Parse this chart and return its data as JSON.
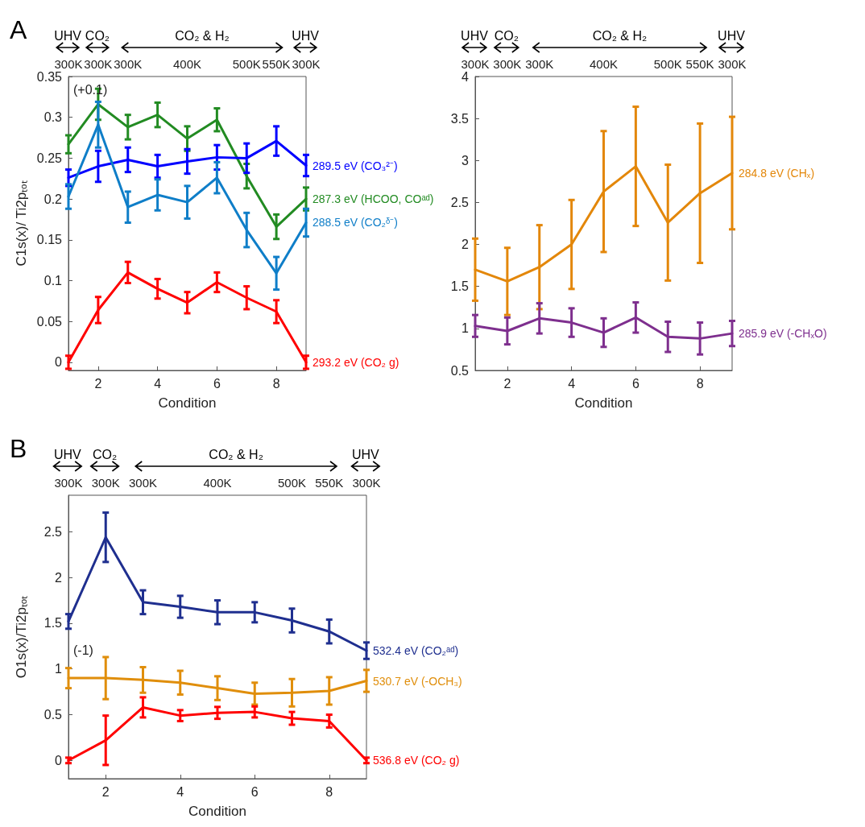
{
  "chart_data": [
    {
      "type": "line",
      "xlabel": "Condition",
      "ylabel": "C1s(x)/ Ti2pₜₒₜ",
      "x": [
        1,
        2,
        3,
        4,
        5,
        6,
        7,
        8,
        9
      ],
      "xlim": [
        1,
        9
      ],
      "xticks": [
        2,
        4,
        6,
        8
      ],
      "ylim": [
        -0.01,
        0.35
      ],
      "yticks": [
        0,
        0.05,
        0.1,
        0.15,
        0.2,
        0.25,
        0.3,
        0.35
      ],
      "grid": false,
      "legend": false,
      "marker": "none",
      "line_style": "solid",
      "annotations": [
        "A",
        "UHV",
        "CO₂",
        "CO₂ & H₂",
        "UHV",
        "300K",
        "300K",
        "300K",
        "400K",
        "500K",
        "550K",
        "300K",
        "(+0.1)"
      ],
      "series": [
        {
          "name": "287.3 eV (HCOO, COᵃᵈ)",
          "color": "#228b22",
          "values": [
            0.267,
            0.316,
            0.288,
            0.303,
            0.274,
            0.297,
            0.228,
            0.166,
            0.2
          ],
          "errors": [
            0.011,
            0.019,
            0.015,
            0.015,
            0.015,
            0.014,
            0.015,
            0.015,
            0.014
          ]
        },
        {
          "name": "289.5 eV (CO₃²⁻)",
          "color": "#0000ff",
          "values": [
            0.226,
            0.24,
            0.248,
            0.24,
            0.246,
            0.251,
            0.25,
            0.271,
            0.241
          ],
          "errors": [
            0.01,
            0.019,
            0.015,
            0.014,
            0.015,
            0.015,
            0.018,
            0.018,
            0.013
          ]
        },
        {
          "name": "288.5 eV (CO₂ᵟ⁻)",
          "color": "#0f7ec8",
          "values": [
            0.203,
            0.291,
            0.19,
            0.205,
            0.196,
            0.226,
            0.162,
            0.109,
            0.171
          ],
          "errors": [
            0.015,
            0.028,
            0.019,
            0.019,
            0.02,
            0.019,
            0.021,
            0.02,
            0.017
          ]
        },
        {
          "name": "293.2 eV (CO₂ g)",
          "color": "#ff0000",
          "values": [
            0,
            0.064,
            0.11,
            0.09,
            0.073,
            0.098,
            0.079,
            0.062,
            0
          ],
          "errors": [
            0.008,
            0.016,
            0.013,
            0.012,
            0.013,
            0.012,
            0.014,
            0.014,
            0.008
          ]
        }
      ]
    },
    {
      "type": "line",
      "xlabel": "Condition",
      "x": [
        1,
        2,
        3,
        4,
        5,
        6,
        7,
        8,
        9
      ],
      "xlim": [
        1,
        9
      ],
      "xticks": [
        2,
        4,
        6,
        8
      ],
      "ylim": [
        0.5,
        4
      ],
      "yticks": [
        0.5,
        1,
        1.5,
        2,
        2.5,
        3,
        3.5,
        4
      ],
      "grid": false,
      "legend": false,
      "marker": "none",
      "line_style": "solid",
      "annotations": [
        "UHV",
        "CO₂",
        "CO₂ & H₂",
        "UHV",
        "300K",
        "300K",
        "300K",
        "400K",
        "500K",
        "550K",
        "300K"
      ],
      "series": [
        {
          "name": "284.8 eV (CHₓ)",
          "color": "#e3870a",
          "values": [
            1.7,
            1.56,
            1.73,
            2.0,
            2.63,
            2.93,
            2.26,
            2.61,
            2.85
          ],
          "errors": [
            0.37,
            0.4,
            0.5,
            0.53,
            0.72,
            0.71,
            0.69,
            0.83,
            0.67
          ]
        },
        {
          "name": "285.9 eV (-CHₓO)",
          "color": "#7e2f8e",
          "values": [
            1.03,
            0.97,
            1.12,
            1.07,
            0.95,
            1.13,
            0.9,
            0.88,
            0.94
          ],
          "errors": [
            0.13,
            0.16,
            0.18,
            0.17,
            0.17,
            0.18,
            0.18,
            0.19,
            0.15
          ]
        }
      ]
    },
    {
      "type": "line",
      "xlabel": "Condition",
      "ylabel": "O1s(x)/Ti2pₜₒₜ",
      "x": [
        1,
        2,
        3,
        4,
        5,
        6,
        7,
        8,
        9
      ],
      "xlim": [
        1,
        9
      ],
      "xticks": [
        2,
        4,
        6,
        8
      ],
      "ylim": [
        -0.2,
        2.9
      ],
      "yticks": [
        0,
        0.5,
        1,
        1.5,
        2,
        2.5
      ],
      "grid": false,
      "legend": false,
      "marker": "none",
      "line_style": "solid",
      "annotations": [
        "B",
        "UHV",
        "CO₂",
        "CO₂ & H₂",
        "UHV",
        "300K",
        "300K",
        "300K",
        "400K",
        "500K",
        "550K",
        "300K",
        "(-1)"
      ],
      "series": [
        {
          "name": "532.4 eV (CO₂ᵃᵈ)",
          "color": "#1f2f8f",
          "values": [
            1.52,
            2.44,
            1.73,
            1.68,
            1.62,
            1.62,
            1.53,
            1.41,
            1.2
          ],
          "errors": [
            0.08,
            0.27,
            0.13,
            0.12,
            0.13,
            0.11,
            0.13,
            0.13,
            0.09
          ]
        },
        {
          "name": "530.7 eV (-OCH₃)",
          "color": "#e08e0b",
          "values": [
            0.9,
            0.9,
            0.88,
            0.85,
            0.79,
            0.73,
            0.74,
            0.76,
            0.87
          ],
          "errors": [
            0.11,
            0.23,
            0.14,
            0.13,
            0.13,
            0.12,
            0.15,
            0.15,
            0.12
          ]
        },
        {
          "name": "536.8 eV (CO₂ g)",
          "color": "#ff0000",
          "values": [
            0,
            0.22,
            0.58,
            0.49,
            0.52,
            0.53,
            0.46,
            0.43,
            0
          ],
          "errors": [
            0.03,
            0.27,
            0.11,
            0.06,
            0.065,
            0.06,
            0.07,
            0.07,
            0.03
          ]
        }
      ]
    }
  ]
}
